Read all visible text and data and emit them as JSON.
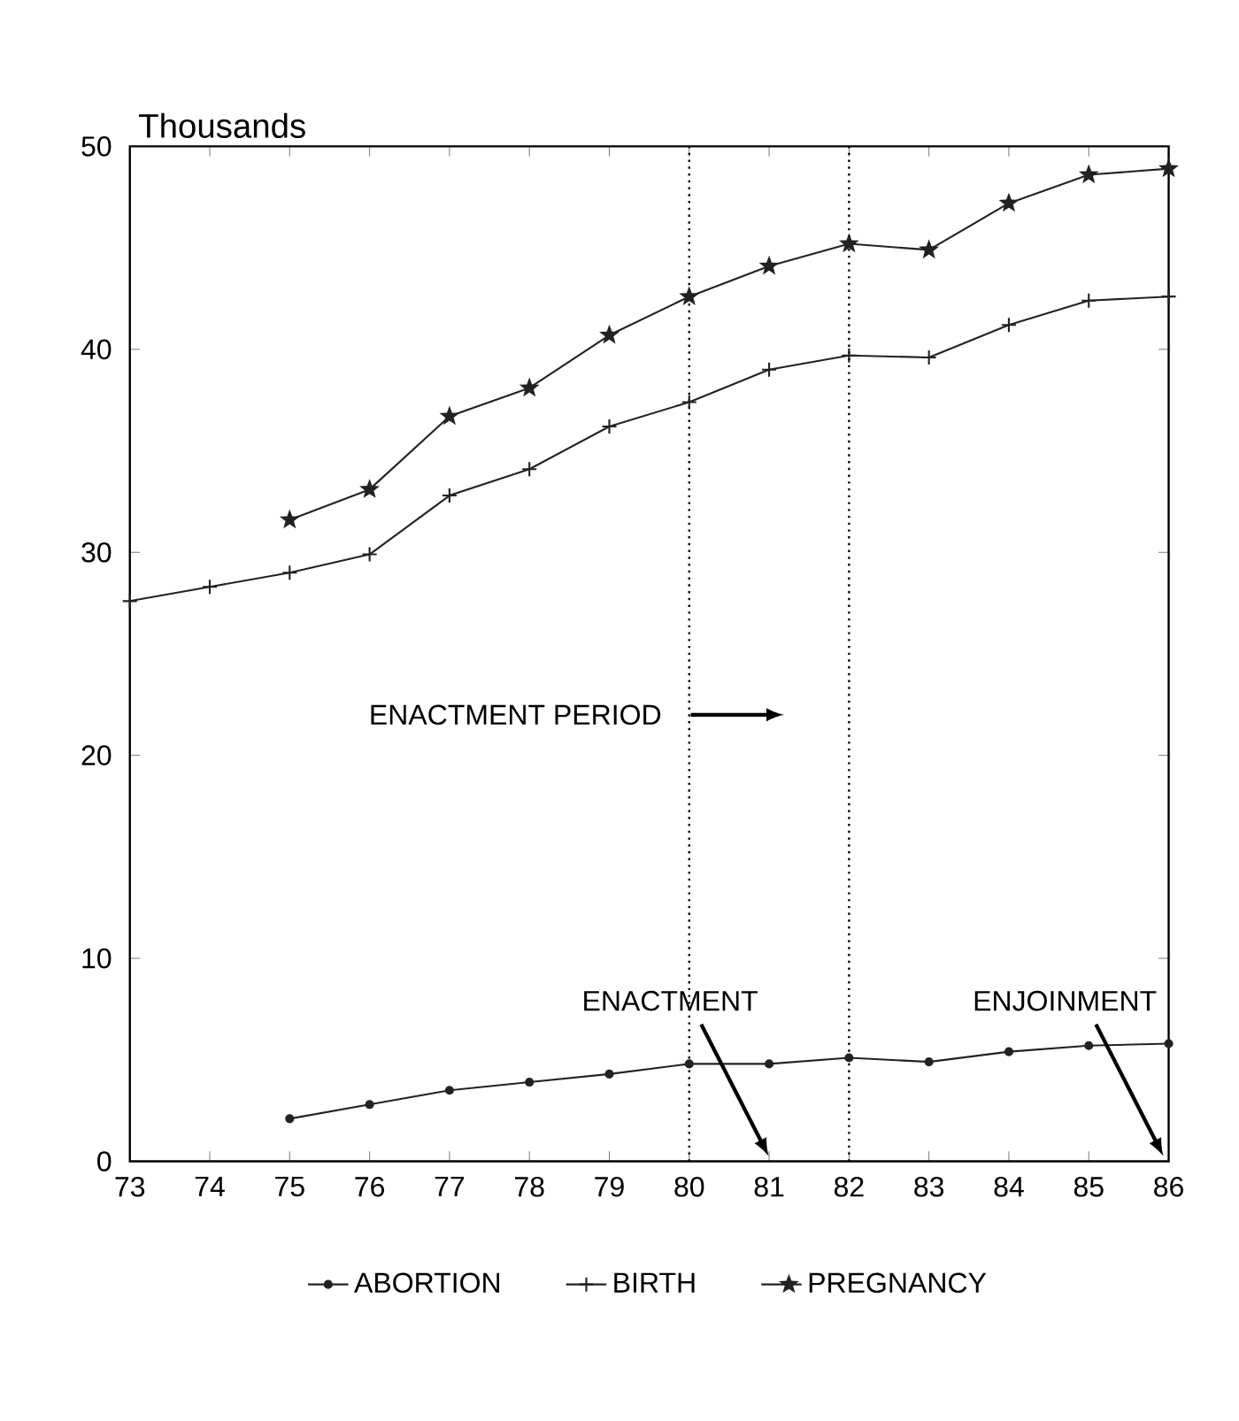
{
  "chart_data": {
    "type": "line",
    "ylabel": "Thousands",
    "xlim": [
      73,
      86
    ],
    "ylim": [
      0,
      50
    ],
    "xticks": [
      73,
      74,
      75,
      76,
      77,
      78,
      79,
      80,
      81,
      82,
      83,
      84,
      85,
      86
    ],
    "yticks": [
      0,
      10,
      20,
      30,
      40,
      50
    ],
    "grid": false,
    "legend": "bottom",
    "line_style": "solid",
    "series": [
      {
        "name": "ABORTION",
        "color": "#222222",
        "marker": "circle",
        "x": [
          75,
          76,
          77,
          78,
          79,
          80,
          81,
          82,
          83,
          84,
          85,
          86
        ],
        "values": [
          2.1,
          2.8,
          3.5,
          3.9,
          4.3,
          4.8,
          4.8,
          5.1,
          4.9,
          5.4,
          5.7,
          5.8
        ]
      },
      {
        "name": "BIRTH",
        "color": "#222222",
        "marker": "cross",
        "x": [
          73,
          74,
          75,
          76,
          77,
          78,
          79,
          80,
          81,
          82,
          83,
          84,
          85,
          86
        ],
        "values": [
          27.6,
          28.3,
          29.0,
          29.9,
          32.8,
          34.1,
          36.2,
          37.4,
          39.0,
          39.7,
          39.6,
          41.2,
          42.4,
          42.6
        ]
      },
      {
        "name": "PREGNANCY",
        "color": "#222222",
        "marker": "star",
        "x": [
          75,
          76,
          77,
          78,
          79,
          80,
          81,
          82,
          83,
          84,
          85,
          86
        ],
        "values": [
          31.6,
          33.1,
          36.7,
          38.1,
          40.7,
          42.6,
          44.1,
          45.2,
          44.9,
          47.2,
          48.6,
          48.9
        ]
      }
    ],
    "ref_lines": [
      {
        "axis": "x",
        "value": 80,
        "line_style": "dotted"
      },
      {
        "axis": "x",
        "value": 82,
        "line_style": "dotted"
      }
    ],
    "annotations": [
      "ENACTMENT PERIOD",
      "ENACTMENT",
      "ENJOINMENT"
    ]
  }
}
